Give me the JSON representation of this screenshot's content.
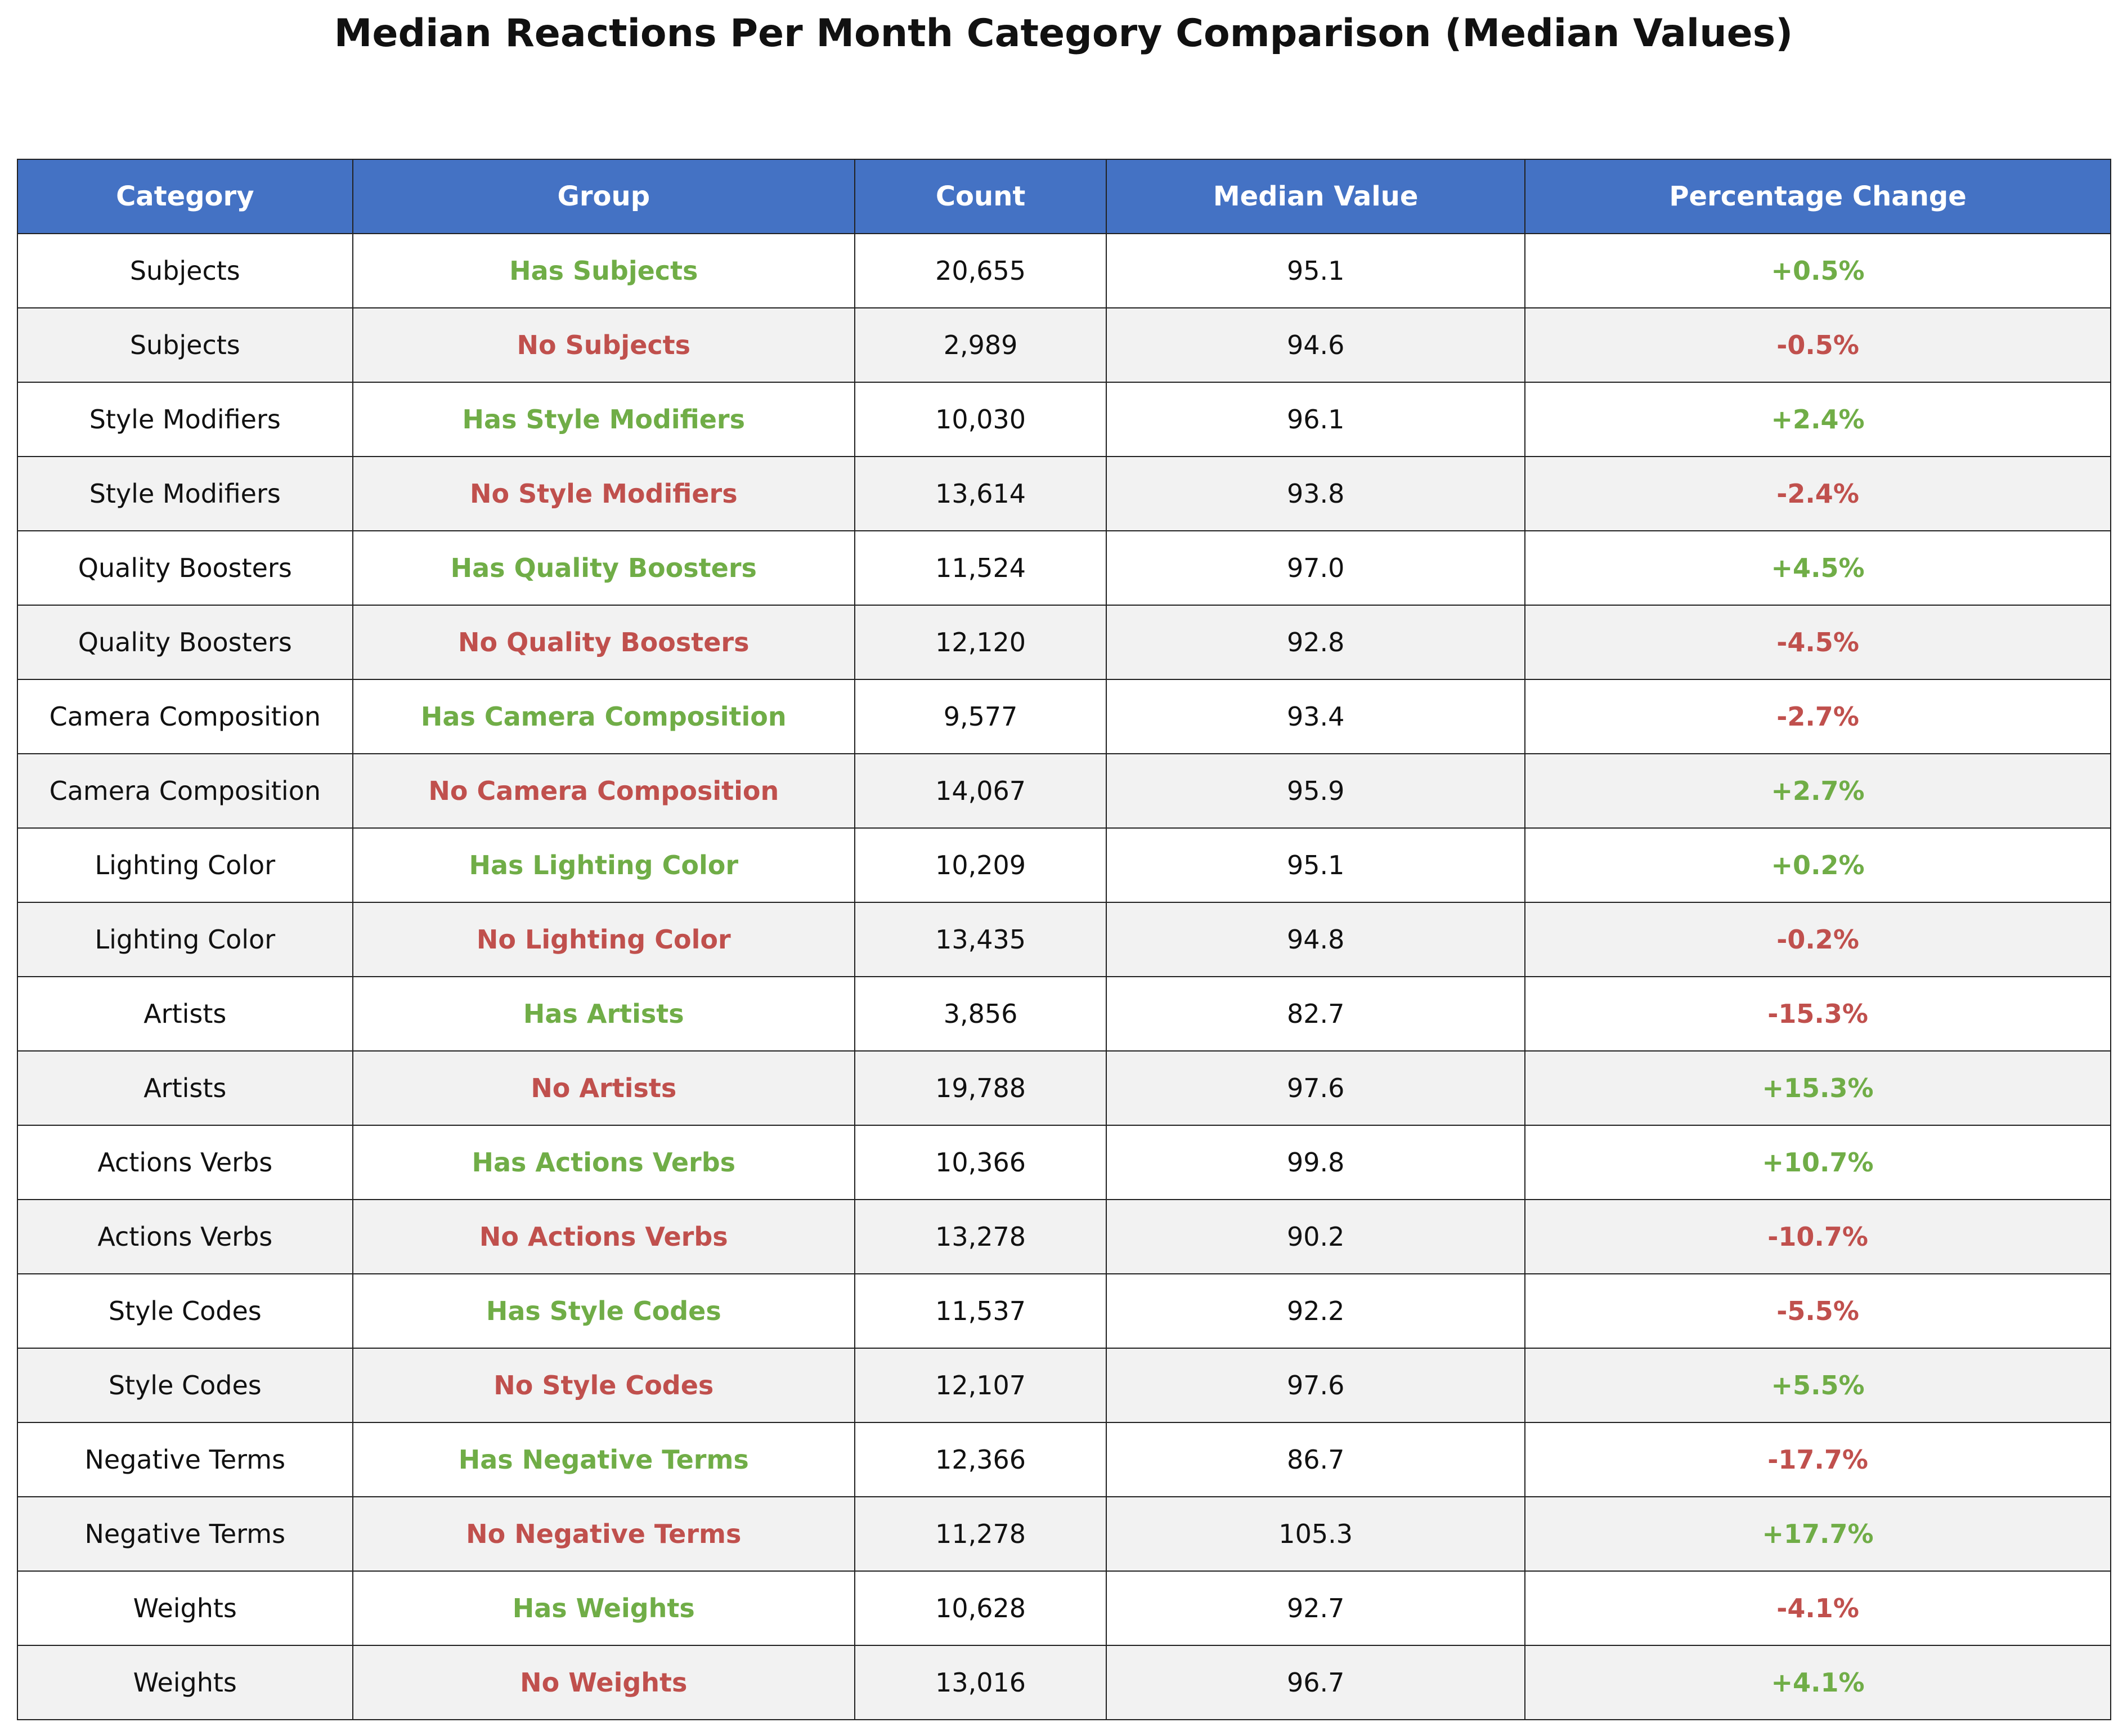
{
  "title": "Median Reactions Per Month Category Comparison (Median Values)",
  "colors": {
    "header_bg": "#4472c4",
    "positive": "#70ad47",
    "negative": "#c0504d",
    "alt_row": "#f2f2f2"
  },
  "chart_data": {
    "type": "table",
    "title": "Median Reactions Per Month Category Comparison (Median Values)",
    "columns": [
      "Category",
      "Group",
      "Count",
      "Median Value",
      "Percentage Change"
    ],
    "rows": [
      {
        "category": "Subjects",
        "group": "Has Subjects",
        "count": "20,655",
        "median": "95.1",
        "change": "+0.5%"
      },
      {
        "category": "Subjects",
        "group": "No Subjects",
        "count": "2,989",
        "median": "94.6",
        "change": "-0.5%"
      },
      {
        "category": "Style Modifiers",
        "group": "Has Style Modifiers",
        "count": "10,030",
        "median": "96.1",
        "change": "+2.4%"
      },
      {
        "category": "Style Modifiers",
        "group": "No Style Modifiers",
        "count": "13,614",
        "median": "93.8",
        "change": "-2.4%"
      },
      {
        "category": "Quality Boosters",
        "group": "Has Quality Boosters",
        "count": "11,524",
        "median": "97.0",
        "change": "+4.5%"
      },
      {
        "category": "Quality Boosters",
        "group": "No Quality Boosters",
        "count": "12,120",
        "median": "92.8",
        "change": "-4.5%"
      },
      {
        "category": "Camera Composition",
        "group": "Has Camera Composition",
        "count": "9,577",
        "median": "93.4",
        "change": "-2.7%"
      },
      {
        "category": "Camera Composition",
        "group": "No Camera Composition",
        "count": "14,067",
        "median": "95.9",
        "change": "+2.7%"
      },
      {
        "category": "Lighting Color",
        "group": "Has Lighting Color",
        "count": "10,209",
        "median": "95.1",
        "change": "+0.2%"
      },
      {
        "category": "Lighting Color",
        "group": "No Lighting Color",
        "count": "13,435",
        "median": "94.8",
        "change": "-0.2%"
      },
      {
        "category": "Artists",
        "group": "Has Artists",
        "count": "3,856",
        "median": "82.7",
        "change": "-15.3%"
      },
      {
        "category": "Artists",
        "group": "No Artists",
        "count": "19,788",
        "median": "97.6",
        "change": "+15.3%"
      },
      {
        "category": "Actions Verbs",
        "group": "Has Actions Verbs",
        "count": "10,366",
        "median": "99.8",
        "change": "+10.7%"
      },
      {
        "category": "Actions Verbs",
        "group": "No Actions Verbs",
        "count": "13,278",
        "median": "90.2",
        "change": "-10.7%"
      },
      {
        "category": "Style Codes",
        "group": "Has Style Codes",
        "count": "11,537",
        "median": "92.2",
        "change": "-5.5%"
      },
      {
        "category": "Style Codes",
        "group": "No Style Codes",
        "count": "12,107",
        "median": "97.6",
        "change": "+5.5%"
      },
      {
        "category": "Negative Terms",
        "group": "Has Negative Terms",
        "count": "12,366",
        "median": "86.7",
        "change": "-17.7%"
      },
      {
        "category": "Negative Terms",
        "group": "No Negative Terms",
        "count": "11,278",
        "median": "105.3",
        "change": "+17.7%"
      },
      {
        "category": "Weights",
        "group": "Has Weights",
        "count": "10,628",
        "median": "92.7",
        "change": "-4.1%"
      },
      {
        "category": "Weights",
        "group": "No Weights",
        "count": "13,016",
        "median": "96.7",
        "change": "+4.1%"
      }
    ]
  }
}
